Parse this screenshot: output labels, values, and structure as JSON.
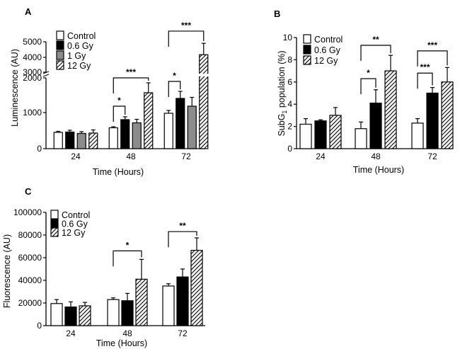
{
  "chart_data": [
    {
      "panel": "A",
      "type": "bar",
      "ylabel": "Luminescence (AU)",
      "xlabel": "Time (Hours)",
      "categories": [
        "24",
        "48",
        "72"
      ],
      "broken_axis": true,
      "ylim_lower": [
        0,
        2000
      ],
      "ylim_upper": [
        3000,
        5000
      ],
      "yticks_lower": [
        "0",
        "1000",
        "2000"
      ],
      "yticks_upper": [
        "3000",
        "4000",
        "5000"
      ],
      "series": [
        {
          "name": "Control",
          "pattern": "white",
          "values": [
            460,
            590,
            1000
          ],
          "errors": [
            30,
            30,
            80
          ]
        },
        {
          "name": "0.6 Gy",
          "pattern": "black",
          "values": [
            470,
            820,
            1420
          ],
          "errors": [
            50,
            80,
            200
          ]
        },
        {
          "name": "1 Gy",
          "pattern": "gray",
          "values": [
            430,
            730,
            1200
          ],
          "errors": [
            50,
            100,
            250
          ]
        },
        {
          "name": "12 Gy",
          "pattern": "hatch",
          "values": [
            440,
            1580,
            4150
          ],
          "errors": [
            90,
            280,
            750
          ]
        }
      ],
      "significance": [
        {
          "cat": 1,
          "from": 0,
          "to": 1,
          "label": "*",
          "y": 1200
        },
        {
          "cat": 1,
          "from": 0,
          "to": 3,
          "label": "***",
          "y": 2200
        },
        {
          "cat": 2,
          "from": 0,
          "to": 1,
          "label": "*",
          "y": 1900
        },
        {
          "cat": 2,
          "from": 0,
          "to": 3,
          "label": "***",
          "y": 5700
        }
      ]
    },
    {
      "panel": "B",
      "type": "bar",
      "ylabel": "SubG1 population (%)",
      "ylabel_main": "SubG",
      "ylabel_sub": "1",
      "ylabel_rest": " population (%)",
      "xlabel": "Time (Hours)",
      "categories": [
        "24",
        "48",
        "72"
      ],
      "ylim": [
        0,
        10
      ],
      "yticks": [
        "0",
        "2",
        "4",
        "6",
        "8",
        "10"
      ],
      "series": [
        {
          "name": "Control",
          "pattern": "white",
          "values": [
            2.2,
            1.8,
            2.3
          ],
          "errors": [
            0.5,
            0.6,
            0.4
          ]
        },
        {
          "name": "0.6 Gy",
          "pattern": "black",
          "values": [
            2.5,
            4.1,
            5.0
          ],
          "errors": [
            0.1,
            1.2,
            0.5
          ]
        },
        {
          "name": "12 Gy",
          "pattern": "hatch",
          "values": [
            3.0,
            7.0,
            6.0
          ],
          "errors": [
            0.7,
            1.4,
            1.3
          ]
        }
      ],
      "significance": [
        {
          "cat": 1,
          "from": 0,
          "to": 1,
          "label": "*",
          "y": 6.3
        },
        {
          "cat": 1,
          "from": 0,
          "to": 2,
          "label": "**",
          "y": 9.3
        },
        {
          "cat": 2,
          "from": 0,
          "to": 1,
          "label": "***",
          "y": 6.8
        },
        {
          "cat": 2,
          "from": 0,
          "to": 2,
          "label": "***",
          "y": 8.8
        }
      ]
    },
    {
      "panel": "C",
      "type": "bar",
      "ylabel": "Fluorescence (AU)",
      "xlabel": "Time (Hours)",
      "categories": [
        "24",
        "48",
        "72"
      ],
      "ylim": [
        0,
        100000
      ],
      "yticks": [
        "0",
        "20000",
        "40000",
        "60000",
        "80000",
        "100000"
      ],
      "series": [
        {
          "name": "Control",
          "pattern": "white",
          "values": [
            19500,
            23000,
            35000
          ],
          "errors": [
            3500,
            1500,
            2000
          ]
        },
        {
          "name": "0.6 Gy",
          "pattern": "black",
          "values": [
            16500,
            22000,
            43000
          ],
          "errors": [
            4500,
            6500,
            7000
          ]
        },
        {
          "name": "12 Gy",
          "pattern": "hatch",
          "values": [
            17500,
            41000,
            66500
          ],
          "errors": [
            3000,
            17500,
            11000
          ]
        }
      ],
      "significance": [
        {
          "cat": 1,
          "from": 0,
          "to": 2,
          "label": "*",
          "y": 66000
        },
        {
          "cat": 2,
          "from": 0,
          "to": 2,
          "label": "**",
          "y": 83000
        }
      ]
    }
  ]
}
